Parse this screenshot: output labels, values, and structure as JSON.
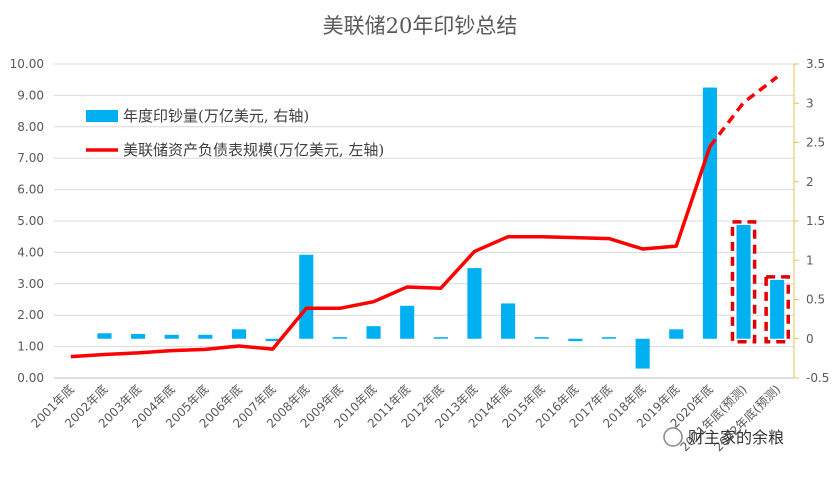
{
  "chart_data": {
    "type": "bar+line",
    "title": "美联储20年印钞总结",
    "categories": [
      "2001年底",
      "2002年底",
      "2003年底",
      "2004年底",
      "2005年底",
      "2006年底",
      "2007年底",
      "2008年底",
      "2009年底",
      "2010年底",
      "2011年底",
      "2012年底",
      "2013年底",
      "2014年底",
      "2015年底",
      "2016年底",
      "2017年底",
      "2018年底",
      "2019年底",
      "2020年底",
      "2021年底(预测)",
      "2022年底(预测)"
    ],
    "left_axis": {
      "min": 0,
      "max": 10,
      "step": 1,
      "tick_labels": [
        "0.00",
        "1.00",
        "2.00",
        "3.00",
        "4.00",
        "5.00",
        "6.00",
        "7.00",
        "8.00",
        "9.00",
        "10.00"
      ]
    },
    "right_axis": {
      "min": -0.5,
      "max": 3.5,
      "step": 0.5,
      "tick_labels": [
        "-0.5",
        "0",
        "0.5",
        "1",
        "1.5",
        "2",
        "2.5",
        "3",
        "3.5"
      ]
    },
    "grid": true,
    "legend_position": "top-left",
    "series": [
      {
        "name": "年度印钞量(万亿美元, 右轴)",
        "type": "bar",
        "axis": "right",
        "color": "#00B0F0",
        "values": [
          null,
          0.07,
          0.06,
          0.05,
          0.05,
          0.12,
          -0.03,
          1.07,
          0.02,
          0.16,
          0.42,
          0.02,
          0.9,
          0.45,
          0.02,
          -0.03,
          0.02,
          -0.38,
          0.12,
          3.2,
          1.45,
          0.75
        ],
        "projected_from_index": 20
      },
      {
        "name": "美联储资产负债表规模(万亿美元, 左轴)",
        "type": "line",
        "axis": "left",
        "color": "#FF0000",
        "values": [
          0.68,
          0.75,
          0.8,
          0.87,
          0.91,
          1.02,
          0.92,
          2.22,
          2.22,
          2.43,
          2.9,
          2.86,
          4.03,
          4.5,
          4.5,
          4.47,
          4.44,
          4.11,
          4.2,
          7.37,
          8.77,
          9.59
        ],
        "projected_from_index": 19
      }
    ],
    "highlight_box_color": "#E00000"
  },
  "watermark": "财主家的余粮"
}
